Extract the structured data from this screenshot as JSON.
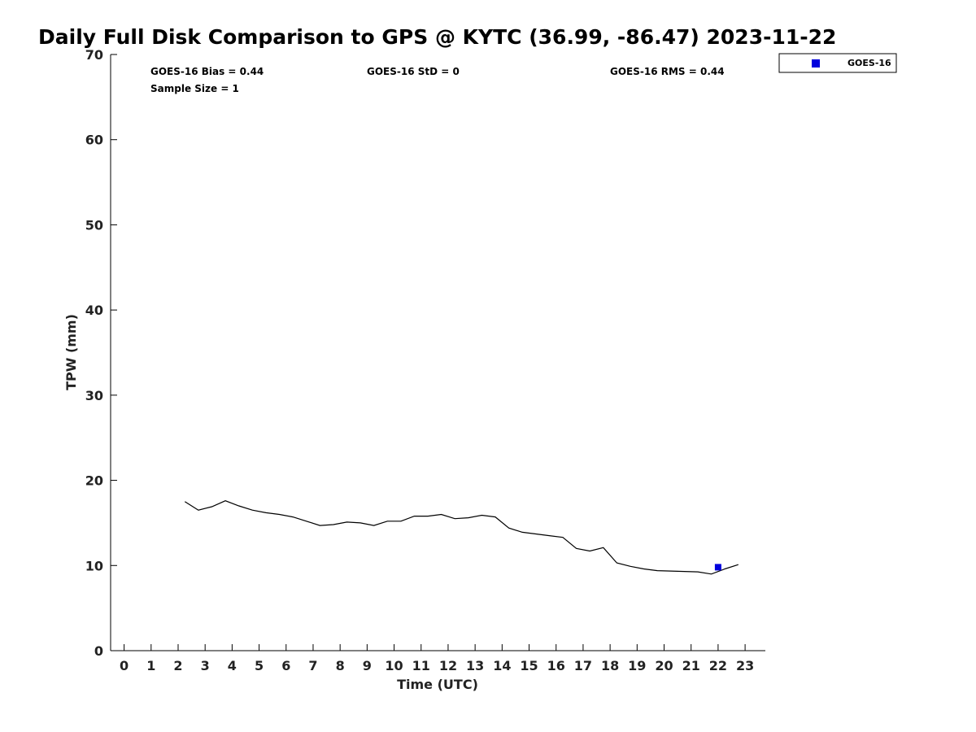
{
  "chart_data": {
    "type": "line",
    "title": "Daily Full Disk Comparison to GPS @ KYTC (36.99, -86.47) 2023-11-22",
    "xlabel": "Time (UTC)",
    "ylabel": "TPW (mm)",
    "xlim": [
      -0.5,
      23.75
    ],
    "ylim": [
      0,
      70
    ],
    "xticks": [
      "0",
      "1",
      "2",
      "3",
      "4",
      "5",
      "6",
      "7",
      "8",
      "9",
      "10",
      "11",
      "12",
      "13",
      "14",
      "15",
      "16",
      "17",
      "18",
      "19",
      "20",
      "21",
      "22",
      "23"
    ],
    "yticks": [
      "0",
      "10",
      "20",
      "30",
      "40",
      "50",
      "60",
      "70"
    ],
    "grid": false,
    "legend_position": "top-right",
    "stats": {
      "bias": "GOES-16 Bias = 0.44",
      "std": "GOES-16 StD = 0",
      "rms": "GOES-16 RMS = 0.44",
      "sample": "Sample Size = 1"
    },
    "series": [
      {
        "role": "GPS",
        "kind": "line",
        "color": "#000000",
        "x": [
          2.25,
          2.75,
          3.25,
          3.75,
          4.25,
          4.75,
          5.25,
          5.75,
          6.25,
          6.75,
          7.25,
          7.75,
          8.25,
          8.75,
          9.25,
          9.75,
          10.25,
          10.75,
          11.25,
          11.75,
          12.25,
          12.75,
          13.25,
          13.75,
          14.25,
          14.75,
          15.25,
          15.75,
          16.25,
          16.75,
          17.25,
          17.75,
          18.25,
          18.75,
          19.25,
          19.75,
          20.25,
          20.75,
          21.25,
          21.75,
          22.25,
          22.75
        ],
        "y": [
          17.5,
          16.5,
          16.9,
          17.6,
          17.0,
          16.5,
          16.2,
          16.0,
          15.7,
          15.2,
          14.7,
          14.8,
          15.1,
          15.0,
          14.7,
          15.2,
          15.2,
          15.8,
          15.8,
          16.0,
          15.5,
          15.6,
          15.9,
          15.7,
          14.4,
          13.9,
          13.7,
          13.5,
          13.3,
          12.0,
          11.7,
          12.1,
          10.3,
          9.9,
          9.6,
          9.4,
          9.35,
          9.3,
          9.25,
          9.0,
          9.6,
          10.1
        ]
      },
      {
        "name": "GOES-16",
        "kind": "marker",
        "color": "#0000dd",
        "x": [
          22.0
        ],
        "y": [
          9.8
        ]
      }
    ]
  }
}
